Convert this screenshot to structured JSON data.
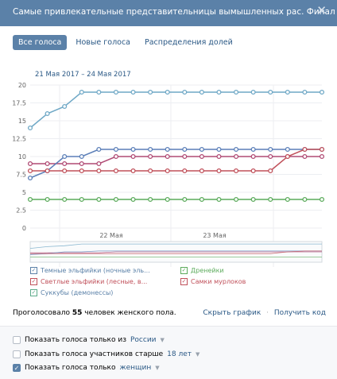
{
  "header": {
    "title": "Самые привлекательные представительницы вымышленных рас. Финал",
    "close_icon": "close-icon"
  },
  "tabs": [
    {
      "label": "Все голоса",
      "active": true
    },
    {
      "label": "Новые голоса",
      "active": false
    },
    {
      "label": "Распределения долей",
      "active": false
    }
  ],
  "date_range": "21 Мая 2017 – 24 Мая 2017",
  "chart_data": {
    "type": "line",
    "y_ticks": [
      "20",
      "17.5",
      "15",
      "12.5",
      "10",
      "7.5",
      "5",
      "2.5",
      "0"
    ],
    "ylim": [
      0,
      20
    ],
    "x_ticks": [
      "22 Мая",
      "23 Мая"
    ],
    "grid": true,
    "series": [
      {
        "name": "Темные эльфийки (ночные эль...",
        "color": "#6fa8c6",
        "values": [
          14,
          16,
          17,
          19,
          19,
          19,
          19,
          19,
          19,
          19,
          19,
          19,
          19,
          19,
          19,
          19,
          19,
          19
        ]
      },
      {
        "name": "Светлые эльфийки (лесные, в...",
        "color": "#b04a74",
        "values": [
          9,
          9,
          9,
          9,
          9,
          10,
          10,
          10,
          10,
          10,
          10,
          10,
          10,
          10,
          10,
          10,
          10,
          10
        ]
      },
      {
        "name": "Суккубы (демонессы)",
        "color": "#5b7fb8",
        "values": [
          7,
          8,
          10,
          10,
          11,
          11,
          11,
          11,
          11,
          11,
          11,
          11,
          11,
          11,
          11,
          11,
          11,
          11
        ]
      },
      {
        "name": "Дренейки",
        "color": "#5cab5c",
        "values": [
          4,
          4,
          4,
          4,
          4,
          4,
          4,
          4,
          4,
          4,
          4,
          4,
          4,
          4,
          4,
          4,
          4,
          4
        ]
      },
      {
        "name": "Самки мурлоков",
        "color": "#c0505a",
        "values": [
          8,
          8,
          8,
          8,
          8,
          8,
          8,
          8,
          8,
          8,
          8,
          8,
          8,
          8,
          8,
          10,
          11,
          11
        ]
      }
    ]
  },
  "legend": [
    {
      "label": "Темные эльфийки (ночные эль...",
      "color": "#5b81a8"
    },
    {
      "label": "Светлые эльфийки (лесные, в...",
      "color": "#c0505a"
    },
    {
      "label": "Суккубы (демонессы)",
      "color": "#5cab8a"
    },
    {
      "label": "Дренейки",
      "color": "#5cab5c"
    },
    {
      "label": "Самки мурлоков",
      "color": "#c0505a"
    }
  ],
  "footer": {
    "prefix": "Проголосовало",
    "count": "55",
    "suffix": "человек женского пола."
  },
  "actions": {
    "hide_chart": "Скрыть график",
    "separator": "·",
    "get_code": "Получить код"
  },
  "filters": [
    {
      "prefix": "Показать голоса только из",
      "link": "России",
      "suffix": "",
      "checked": false
    },
    {
      "prefix": "Показать голоса участников старше",
      "link": "18 лет",
      "suffix": "",
      "checked": false
    },
    {
      "prefix": "Показать голоса только",
      "link": "женщин",
      "suffix": "",
      "checked": true
    }
  ]
}
